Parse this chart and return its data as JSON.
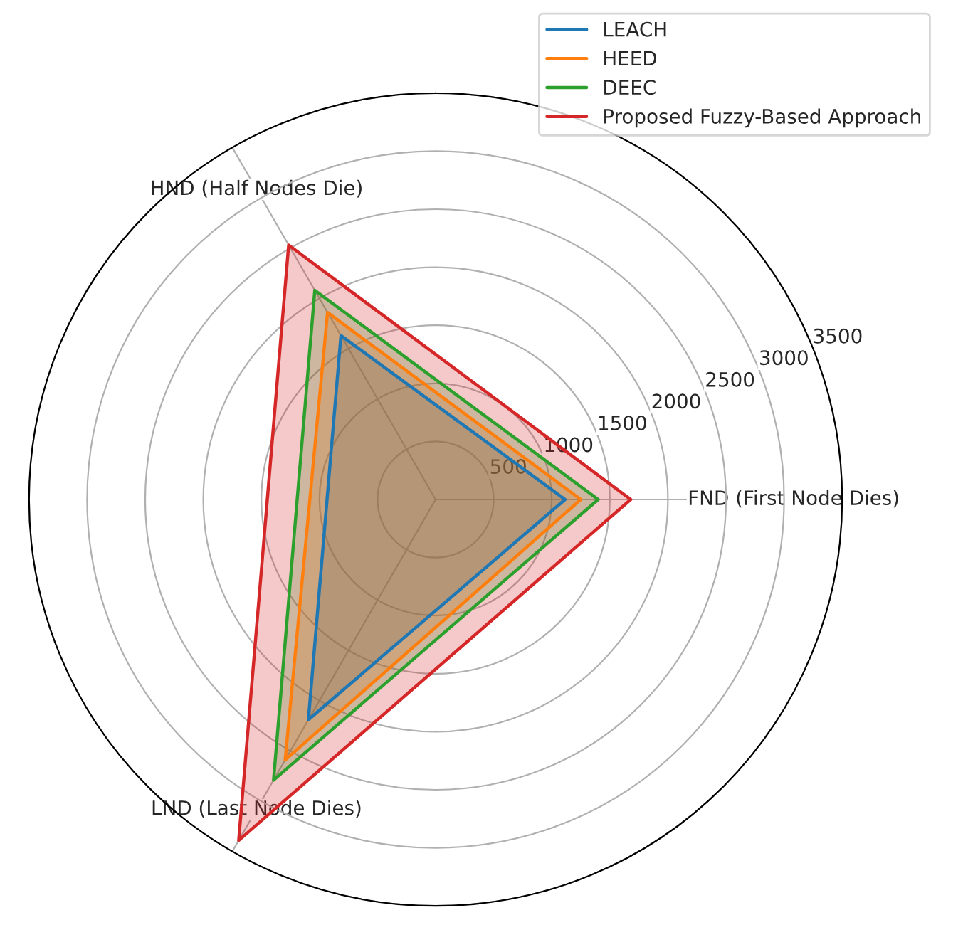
{
  "chart_data": {
    "type": "radar",
    "categories": [
      "FND (First Node Dies)",
      "LND (Last Node Dies)",
      "HND (Half Nodes Die)"
    ],
    "series": [
      {
        "name": "LEACH",
        "color": "#1f77b4",
        "values": [
          1115,
          2190,
          1630
        ]
      },
      {
        "name": "HEED",
        "color": "#ff7f0e",
        "values": [
          1250,
          2590,
          1860
        ]
      },
      {
        "name": "DEEC",
        "color": "#2ca02c",
        "values": [
          1400,
          2790,
          2080
        ]
      },
      {
        "name": "Proposed Fuzzy-Based Approach",
        "color": "#d62728",
        "values": [
          1680,
          3390,
          2530
        ]
      }
    ],
    "ylim": [
      0,
      3500
    ],
    "yticks": [
      500,
      1000,
      1500,
      2000,
      2500,
      3000,
      3500
    ],
    "grid": true,
    "legend": "top right"
  }
}
